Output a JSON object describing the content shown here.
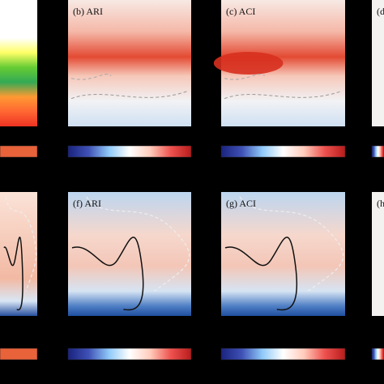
{
  "figure": {
    "background": "#000000",
    "panels": [
      {
        "id": "a",
        "label": "",
        "row": 0,
        "col": 0,
        "style": "rainbow"
      },
      {
        "id": "b",
        "label": "(b) ARI",
        "row": 0,
        "col": 1,
        "style": "band"
      },
      {
        "id": "c",
        "label": "(c) ACI",
        "row": 0,
        "col": 2,
        "style": "band-strong"
      },
      {
        "id": "d",
        "label": "(d",
        "row": 0,
        "col": 3,
        "style": "edge"
      },
      {
        "id": "e",
        "label": "",
        "row": 1,
        "col": 0,
        "style": "contour-warm"
      },
      {
        "id": "f",
        "label": "(f) ARI",
        "row": 1,
        "col": 1,
        "style": "contour"
      },
      {
        "id": "g",
        "label": "(g) ACI",
        "row": 1,
        "col": 2,
        "style": "contour"
      },
      {
        "id": "h",
        "label": "(h",
        "row": 1,
        "col": 3,
        "style": "edge"
      }
    ],
    "colorbar_colors": [
      "#1a237e",
      "#3f51b5",
      "#90caf9",
      "#ffffff",
      "#ffccbc",
      "#ef5350",
      "#b71c1c"
    ],
    "rainbow_colors": [
      "#ffffff",
      "#ffff66",
      "#66cc33",
      "#33aa55",
      "#ff9933",
      "#ff6633",
      "#ee3322"
    ]
  }
}
